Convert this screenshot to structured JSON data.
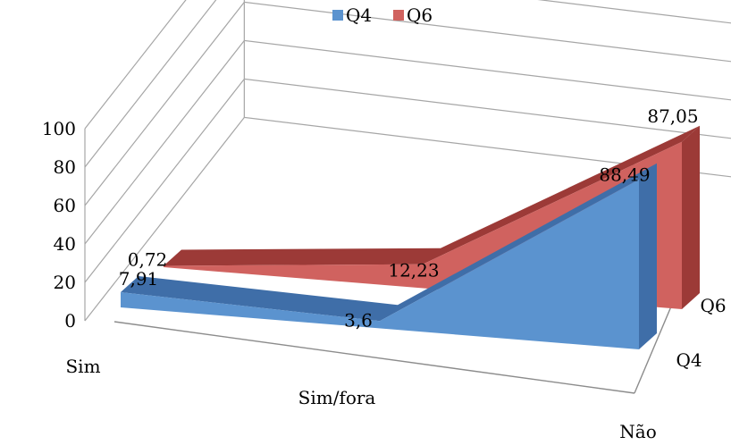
{
  "chart_data": {
    "type": "area",
    "subtype": "3d-area",
    "categories": [
      "Sim",
      "Sim/fora",
      "Não"
    ],
    "series": [
      {
        "name": "Q4",
        "values": [
          7.91,
          3.6,
          88.49
        ],
        "labels": [
          "7,91",
          "3,6",
          "88,49"
        ]
      },
      {
        "name": "Q6",
        "values": [
          0.72,
          12.23,
          87.05
        ],
        "labels": [
          "0,72",
          "12,23",
          "87,05"
        ]
      }
    ],
    "depth_labels": [
      "Q4",
      "Q6"
    ],
    "y_ticks": [
      "0",
      "20",
      "40",
      "60",
      "80",
      "100"
    ],
    "ylim": [
      0,
      100
    ],
    "grid": true,
    "legend_position": "top"
  },
  "colors": {
    "Q4": "#5b93cf",
    "Q4_top": "#3f6ea8",
    "Q6": "#d0625f",
    "Q6_top": "#9c3a37",
    "grid": "#a6a6a6"
  }
}
